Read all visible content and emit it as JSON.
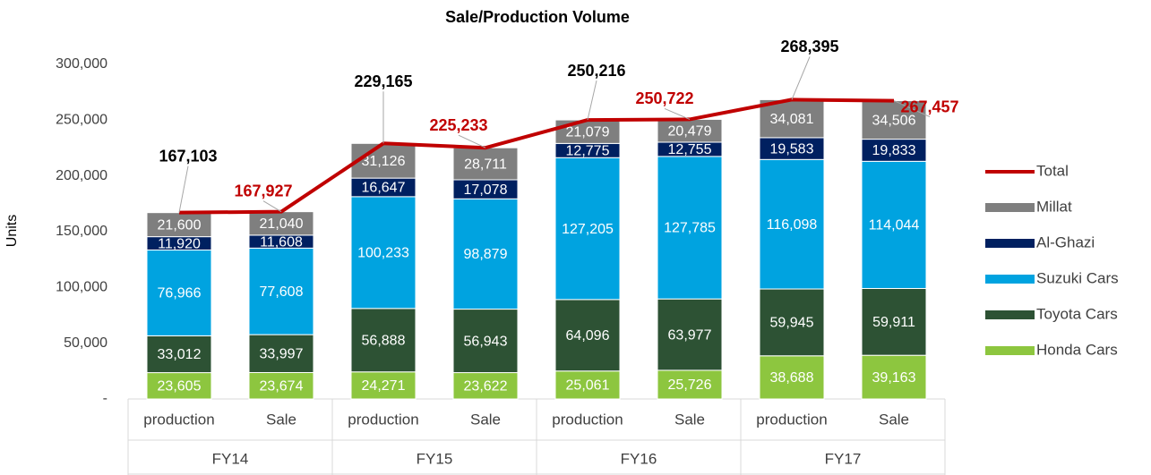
{
  "chart_data": {
    "type": "stacked-bar-line",
    "title": "Sale/Production Volume",
    "y_label": "Units",
    "categories": [
      "production",
      "Sale",
      "production",
      "Sale",
      "production",
      "Sale",
      "production",
      "Sale"
    ],
    "groups": [
      "FY14",
      "FY15",
      "FY16",
      "FY17"
    ],
    "ylim": [
      0,
      300000
    ],
    "yticks": [
      {
        "value": 0,
        "label": "-"
      },
      {
        "value": 50000,
        "label": "50,000"
      },
      {
        "value": 100000,
        "label": "100,000"
      },
      {
        "value": 150000,
        "label": "150,000"
      },
      {
        "value": 200000,
        "label": "200,000"
      },
      {
        "value": 250000,
        "label": "250,000"
      },
      {
        "value": 300000,
        "label": "300,000"
      }
    ],
    "series": [
      {
        "name": "Honda Cars",
        "color": "#8dc63f",
        "values": [
          23605,
          23674,
          24271,
          23622,
          25061,
          25726,
          38688,
          39163
        ],
        "value_labels": [
          "23,605",
          "23,674",
          "24,271",
          "23,622",
          "25,061",
          "25,726",
          "38,688",
          "39,163"
        ]
      },
      {
        "name": "Toyota Cars",
        "color": "#2d5234",
        "values": [
          33012,
          33997,
          56888,
          56943,
          64096,
          63977,
          59945,
          59911
        ],
        "value_labels": [
          "33,012",
          "33,997",
          "56,888",
          "56,943",
          "64,096",
          "63,977",
          "59,945",
          "59,911"
        ]
      },
      {
        "name": "Suzuki Cars",
        "color": "#00a3e0",
        "values": [
          76966,
          77608,
          100233,
          98879,
          127205,
          127785,
          116098,
          114044
        ],
        "value_labels": [
          "76,966",
          "77,608",
          "100,233",
          "98,879",
          "127,205",
          "127,785",
          "116,098",
          "114,044"
        ]
      },
      {
        "name": "Al-Ghazi",
        "color": "#002060",
        "values": [
          11920,
          11608,
          16647,
          17078,
          12775,
          12755,
          19583,
          19833
        ],
        "value_labels": [
          "11,920",
          "11,608",
          "16,647",
          "17,078",
          "12,775",
          "12,755",
          "19,583",
          "19,833"
        ]
      },
      {
        "name": "Millat",
        "color": "#7f7f7f",
        "values": [
          21600,
          21040,
          31126,
          28711,
          21079,
          20479,
          34081,
          34506
        ],
        "value_labels": [
          "21,600",
          "21,040",
          "31,126",
          "28,711",
          "21,079",
          "20,479",
          "34,081",
          "34,506"
        ]
      },
      {
        "name": "Total",
        "type": "line",
        "color": "#c00000",
        "values": [
          167103,
          167927,
          229165,
          225233,
          250216,
          250722,
          268395,
          267457
        ],
        "value_labels": [
          "167,103",
          "167,927",
          "229,165",
          "225,233",
          "250,216",
          "250,722",
          "268,395",
          "267,457"
        ],
        "label_colors": [
          "#000000",
          "#c00000",
          "#000000",
          "#c00000",
          "#000000",
          "#c00000",
          "#000000",
          "#c00000"
        ]
      }
    ]
  }
}
